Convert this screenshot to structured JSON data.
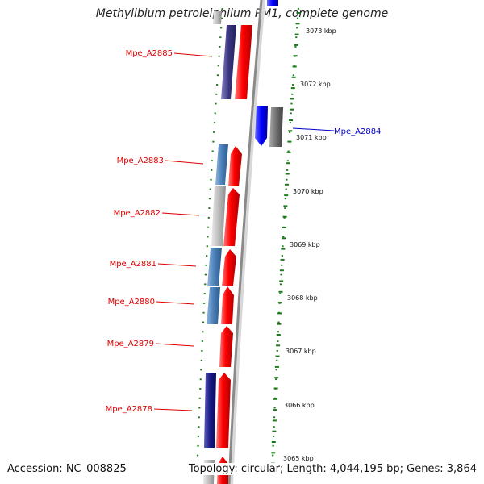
{
  "title": "Methylibium petroleiphilum PM1, complete genome",
  "accession_line": "Accession: NC_008825",
  "topology_line": "Topology: circular; Length: 4,044,195 bp; Genes: 3,864",
  "colors": {
    "forward_label": "#dd0000",
    "reverse_label": "#0000cc",
    "forward_strand": "#ff0000",
    "reverse_navy": "#1a1a88",
    "reverse_purple": "#3a3580",
    "reverse_steelblue": "#4a7fb8",
    "reverse_blue": "#0000ff",
    "hypothetical_gray": "#bdbdbd",
    "other_gray": "#707070",
    "gc_dots": "#1a7a1a",
    "backbone": "#9a9a9a"
  },
  "scale_ticks": [
    "3073 kbp",
    "3072 kbp",
    "3071 kbp",
    "3070 kbp",
    "3069 kbp",
    "3068 kbp",
    "3067 kbp",
    "3066 kbp",
    "3065 kbp"
  ],
  "genes": [
    {
      "name": "Mpe_A2885",
      "strand": "forward"
    },
    {
      "name": "Mpe_A2884",
      "strand": "reverse"
    },
    {
      "name": "Mpe_A2883",
      "strand": "forward"
    },
    {
      "name": "Mpe_A2882",
      "strand": "forward"
    },
    {
      "name": "Mpe_A2881",
      "strand": "forward"
    },
    {
      "name": "Mpe_A2880",
      "strand": "forward"
    },
    {
      "name": "Mpe_A2879",
      "strand": "forward"
    },
    {
      "name": "Mpe_A2878",
      "strand": "forward"
    }
  ]
}
